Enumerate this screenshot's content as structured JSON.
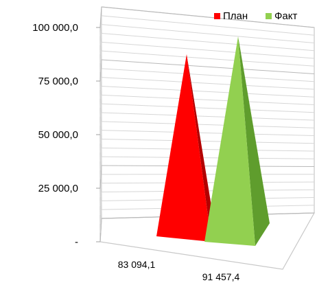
{
  "chart_data": {
    "type": "bar",
    "style": "3d-pyramid",
    "title": "",
    "xlabel": "",
    "ylabel": "",
    "ylim": [
      0,
      100000
    ],
    "y_ticks": [
      {
        "value": 0,
        "label": "-"
      },
      {
        "value": 25000,
        "label": "25 000,0"
      },
      {
        "value": 50000,
        "label": "50 000,0"
      },
      {
        "value": 75000,
        "label": "75 000,0"
      },
      {
        "value": 100000,
        "label": "100 000,0"
      }
    ],
    "grid": true,
    "legend": "top-right",
    "series": [
      {
        "name": "План",
        "value": 83094.1,
        "label": "83 094,1",
        "color": "#ff0000",
        "side_color": "#b30000"
      },
      {
        "name": "Факт",
        "value": 91457.4,
        "label": "91 457,4",
        "color": "#92d050",
        "side_color": "#5f9d2d"
      }
    ]
  }
}
